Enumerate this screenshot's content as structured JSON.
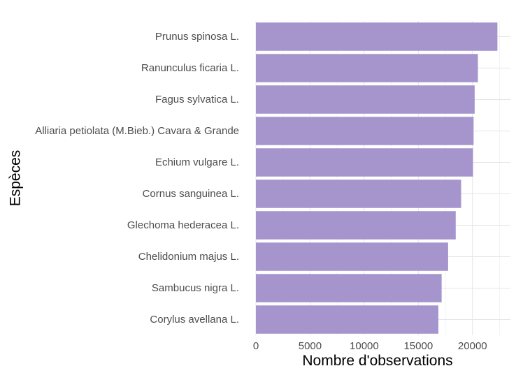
{
  "chart_data": {
    "type": "bar",
    "orientation": "horizontal",
    "categories": [
      "Prunus spinosa L.",
      "Ranunculus ficaria L.",
      "Fagus sylvatica L.",
      "Alliaria petiolata (M.Bieb.) Cavara & Grande",
      "Echium vulgare L.",
      "Cornus sanguinea L.",
      "Glechoma hederacea L.",
      "Chelidonium majus L.",
      "Sambucus nigra L.",
      "Corylus avellana L."
    ],
    "values": [
      22300,
      20500,
      20200,
      20100,
      20050,
      18950,
      18450,
      17750,
      17150,
      16850
    ],
    "xlabel": "Nombre d'observations",
    "ylabel": "Espèces",
    "xlim": [
      0,
      23500
    ],
    "xticks": [
      0,
      5000,
      10000,
      15000,
      20000
    ],
    "xtick_labels": [
      "0",
      "5000",
      "10000",
      "15000",
      "20000"
    ],
    "grid": true,
    "bar_color": "#a695cd"
  }
}
